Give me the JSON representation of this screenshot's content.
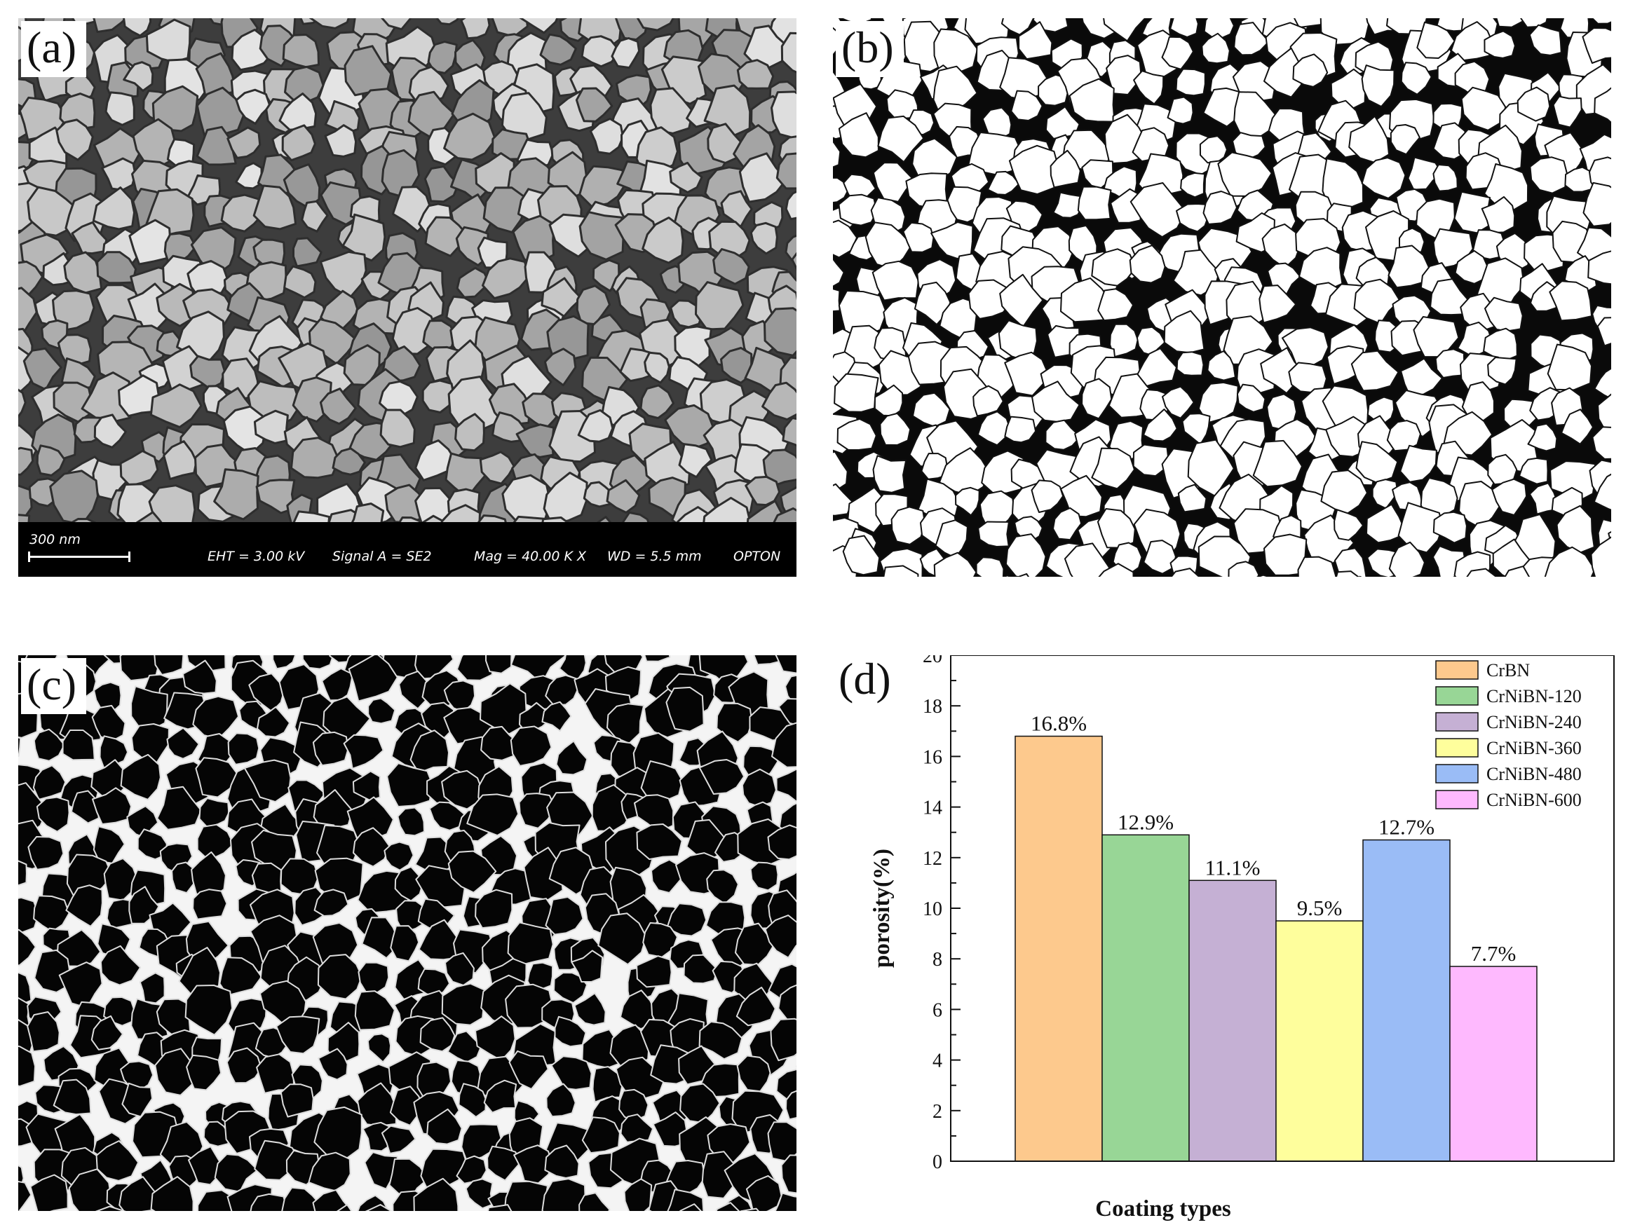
{
  "panels": {
    "a": {
      "letter": "(a)",
      "sem_info": {
        "scale": "300 nm",
        "eht": "EHT = 3.00 kV",
        "signal": "Signal A = SE2",
        "mag": "Mag = 40.00 K X",
        "wd": "WD = 5.5 mm",
        "brand": "OPTON"
      }
    },
    "b": {
      "letter": "(b)"
    },
    "c": {
      "letter": "(c)"
    },
    "d": {
      "letter": "(d)"
    }
  },
  "chart_data": {
    "type": "bar",
    "categories": [
      "CrBN",
      "CrNiBN-120",
      "CrNiBN-240",
      "CrNiBN-360",
      "CrNiBN-480",
      "CrNiBN-600"
    ],
    "values": [
      16.8,
      12.9,
      11.1,
      9.5,
      12.7,
      7.7
    ],
    "data_labels": [
      "16.8%",
      "12.9%",
      "11.1%",
      "9.5%",
      "12.7%",
      "7.7%"
    ],
    "colors": [
      "#fdc98d",
      "#98d696",
      "#c5b0d4",
      "#fefe9c",
      "#9abcf6",
      "#feb9fe"
    ],
    "xlabel": "Coating types",
    "ylabel": "porosity(%)",
    "ylim": [
      0,
      20
    ],
    "yticks": [
      0,
      2,
      4,
      6,
      8,
      10,
      12,
      14,
      16,
      18,
      20
    ],
    "legend": {
      "position": "top-right",
      "entries": [
        "CrBN",
        "CrNiBN-120",
        "CrNiBN-240",
        "CrNiBN-360",
        "CrNiBN-480",
        "CrNiBN-600"
      ]
    },
    "grid": false
  }
}
